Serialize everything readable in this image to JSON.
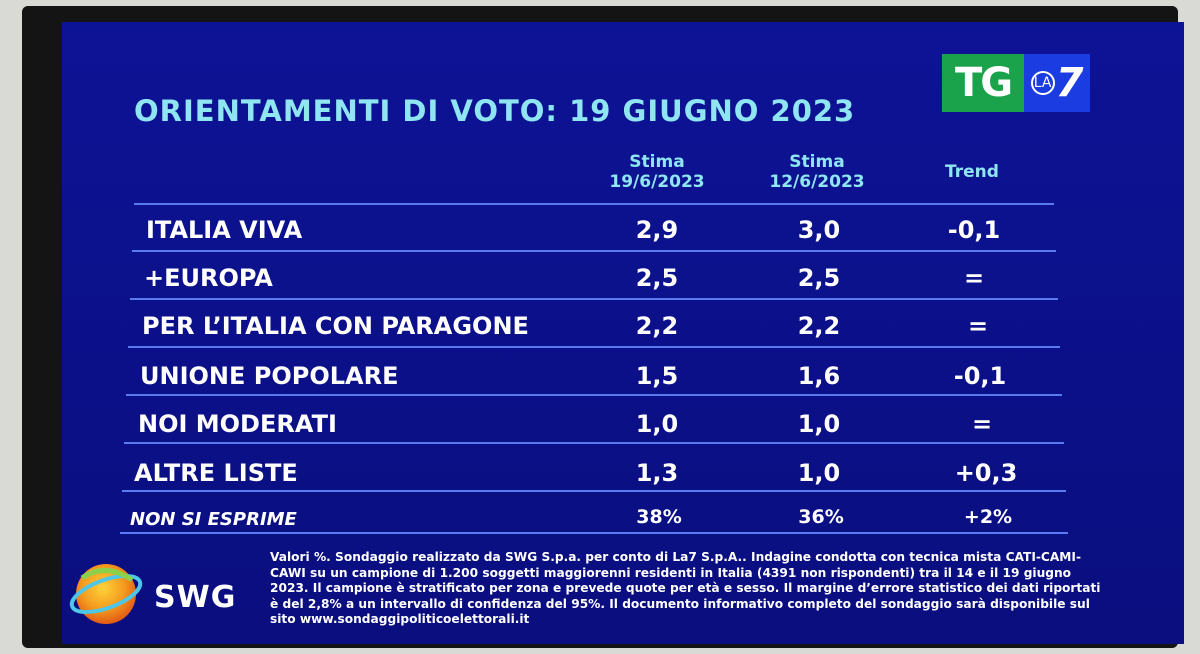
{
  "title": "ORIENTAMENTI DI VOTO: 19 GIUGNO 2023",
  "logo": {
    "tg": "TG",
    "la": "LA",
    "seven": "7"
  },
  "columns": {
    "col1": [
      "Stima",
      "19/6/2023"
    ],
    "col2": [
      "Stima",
      "12/6/2023"
    ],
    "col3": "Trend"
  },
  "rows": [
    {
      "label": "ITALIA VIVA",
      "current": "2,9",
      "previous": "3,0",
      "trend": "-0,1"
    },
    {
      "label": "+EUROPA",
      "current": "2,5",
      "previous": "2,5",
      "trend": "="
    },
    {
      "label": "PER L’ITALIA CON PARAGONE",
      "current": "2,2",
      "previous": "2,2",
      "trend": "="
    },
    {
      "label": "UNIONE POPOLARE",
      "current": "1,5",
      "previous": "1,6",
      "trend": "-0,1"
    },
    {
      "label": "NOI MODERATI",
      "current": "1,0",
      "previous": "1,0",
      "trend": "="
    },
    {
      "label": "ALTRE LISTE",
      "current": "1,3",
      "previous": "1,0",
      "trend": "+0,3"
    }
  ],
  "non_si_esprime": {
    "label": "NON SI ESPRIME",
    "current": "38%",
    "previous": "36%",
    "trend": "+2%"
  },
  "swg": {
    "name": "SWG",
    "icon": "globe-icon"
  },
  "footnote": "Valori %. Sondaggio realizzato da SWG S.p.a. per conto di La7 S.p.A.. Indagine condotta con tecnica mista CATI-CAMI-CAWI su un campione di 1.200 soggetti maggiorenni residenti in Italia (4391 non rispondenti) tra il 14 e il 19 giugno 2023. Il campione è stratificato per zona e prevede quote per età e sesso. Il margine d’errore statistico dei dati riportati è del 2,8% a un intervallo di confidenza del 95%. Il documento informativo completo del sondaggio sarà disponibile sul sito www.sondaggipoliticoelettorali.it",
  "colors": {
    "background": "#0d1395",
    "title": "#8fe6f2",
    "lines": "#5a7bf0",
    "text": "#ffffff"
  }
}
